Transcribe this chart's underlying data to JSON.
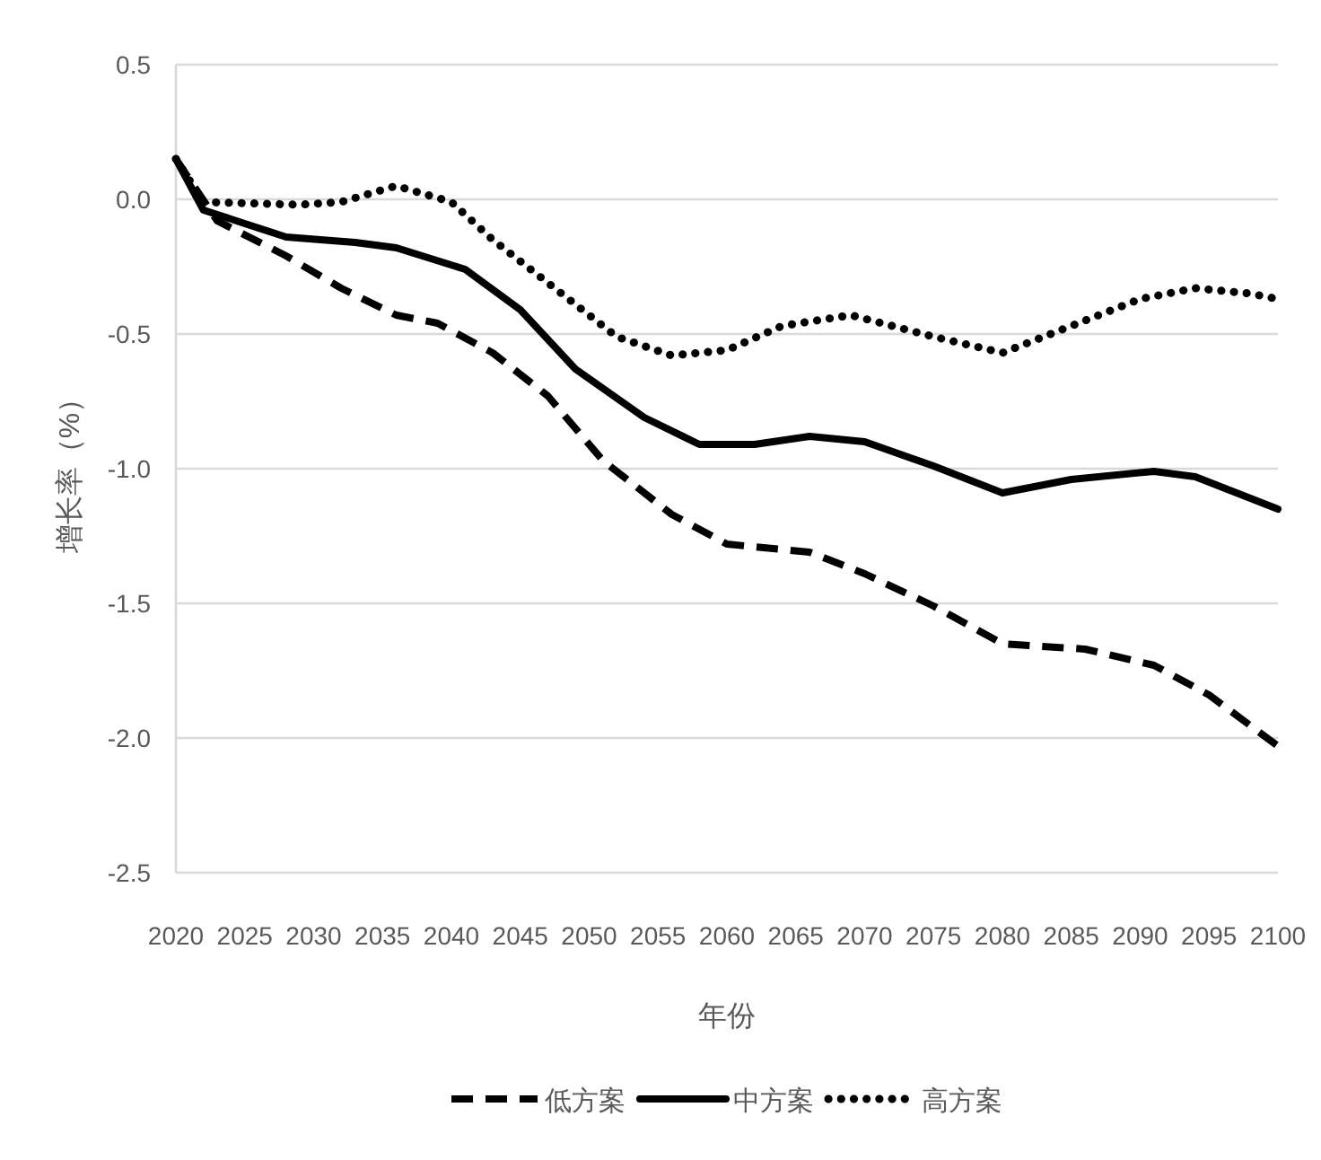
{
  "chart_data": {
    "type": "line",
    "xlabel": "年份",
    "ylabel": "增长率（%）",
    "xlim": [
      2020,
      2100
    ],
    "xticks": [
      2020,
      2025,
      2030,
      2035,
      2040,
      2045,
      2050,
      2055,
      2060,
      2065,
      2070,
      2075,
      2080,
      2085,
      2090,
      2095,
      2100
    ],
    "ylim": [
      -2.5,
      0.5
    ],
    "yticks": [
      {
        "value": 0.5,
        "label": "0.5"
      },
      {
        "value": 0,
        "label": "0.0"
      },
      {
        "value": -0.5,
        "label": "-0.5"
      },
      {
        "value": -1,
        "label": "-1.0"
      },
      {
        "value": -1.5,
        "label": "-1.5"
      },
      {
        "value": -2,
        "label": "-2.0"
      },
      {
        "value": -2.5,
        "label": "-2.5"
      }
    ],
    "grid": "y",
    "legend": "bottom",
    "marker": "none",
    "series": [
      {
        "name": "低方案",
        "color": "#000000",
        "line_style": "dashed",
        "x": [
          2020,
          2023,
          2028,
          2032,
          2036,
          2039,
          2043,
          2047,
          2051,
          2056,
          2060,
          2066,
          2070,
          2075,
          2080,
          2086,
          2091,
          2095,
          2100
        ],
        "values": [
          0.15,
          -0.08,
          -0.21,
          -0.33,
          -0.43,
          -0.46,
          -0.57,
          -0.73,
          -0.97,
          -1.17,
          -1.28,
          -1.31,
          -1.39,
          -1.51,
          -1.65,
          -1.67,
          -1.73,
          -1.84,
          -2.03
        ]
      },
      {
        "name": "中方案",
        "color": "#000000",
        "line_style": "solid",
        "x": [
          2020,
          2022,
          2028,
          2033,
          2036,
          2041,
          2045,
          2049,
          2054,
          2058,
          2062,
          2066,
          2070,
          2075,
          2080,
          2085,
          2091,
          2094,
          2100
        ],
        "values": [
          0.15,
          -0.04,
          -0.14,
          -0.16,
          -0.18,
          -0.26,
          -0.41,
          -0.63,
          -0.81,
          -0.91,
          -0.91,
          -0.88,
          -0.9,
          -0.99,
          -1.09,
          -1.04,
          -1.01,
          -1.03,
          -1.15
        ]
      },
      {
        "name": "高方案",
        "color": "#000000",
        "line_style": "dotted",
        "x": [
          2020,
          2022,
          2029,
          2032,
          2036,
          2040,
          2043,
          2047,
          2052,
          2056,
          2060,
          2064,
          2069,
          2075,
          2080,
          2084,
          2090,
          2094,
          2098,
          2100
        ],
        "values": [
          0.15,
          -0.01,
          -0.02,
          -0.01,
          0.05,
          -0.01,
          -0.15,
          -0.31,
          -0.51,
          -0.58,
          -0.56,
          -0.47,
          -0.43,
          -0.51,
          -0.57,
          -0.49,
          -0.37,
          -0.33,
          -0.35,
          -0.37
        ]
      }
    ]
  }
}
